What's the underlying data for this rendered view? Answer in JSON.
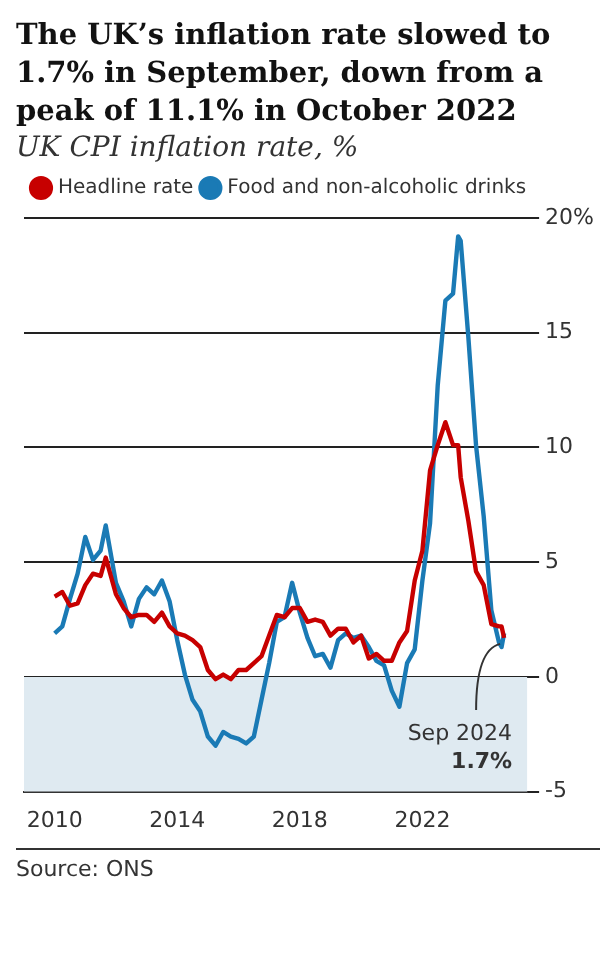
{
  "chart_data": {
    "type": "line",
    "title": "The UK’s inflation rate slowed to 1.7% in September, down from a peak of 11.1% in October 2022",
    "subtitle": "UK CPI inflation rate, %",
    "x": [
      "2010-01",
      "2010-04",
      "2010-07",
      "2010-10",
      "2011-01",
      "2011-04",
      "2011-07",
      "2011-09",
      "2012-01",
      "2012-04",
      "2012-07",
      "2012-10",
      "2013-01",
      "2013-04",
      "2013-07",
      "2013-10",
      "2014-01",
      "2014-04",
      "2014-07",
      "2014-10",
      "2015-01",
      "2015-04",
      "2015-07",
      "2015-10",
      "2016-01",
      "2016-04",
      "2016-07",
      "2016-10",
      "2017-01",
      "2017-04",
      "2017-07",
      "2017-10",
      "2018-01",
      "2018-04",
      "2018-07",
      "2018-10",
      "2019-01",
      "2019-04",
      "2019-07",
      "2019-10",
      "2020-01",
      "2020-04",
      "2020-07",
      "2020-10",
      "2021-01",
      "2021-04",
      "2021-07",
      "2021-10",
      "2022-01",
      "2022-04",
      "2022-07",
      "2022-10",
      "2023-01",
      "2023-03",
      "2023-04",
      "2023-07",
      "2023-10",
      "2024-01",
      "2024-04",
      "2024-07",
      "2024-08",
      "2024-09"
    ],
    "series": [
      {
        "name": "Headline rate",
        "color": "#c70000",
        "values": [
          3.5,
          3.7,
          3.1,
          3.2,
          4.0,
          4.5,
          4.4,
          5.2,
          3.6,
          3.0,
          2.6,
          2.7,
          2.7,
          2.4,
          2.8,
          2.2,
          1.9,
          1.8,
          1.6,
          1.3,
          0.3,
          -0.1,
          0.1,
          -0.1,
          0.3,
          0.3,
          0.6,
          0.9,
          1.8,
          2.7,
          2.6,
          3.0,
          3.0,
          2.4,
          2.5,
          2.4,
          1.8,
          2.1,
          2.1,
          1.5,
          1.8,
          0.8,
          1.0,
          0.7,
          0.7,
          1.5,
          2.0,
          4.2,
          5.5,
          9.0,
          10.1,
          11.1,
          10.1,
          10.1,
          8.7,
          6.8,
          4.6,
          4.0,
          2.3,
          2.2,
          2.2,
          1.7
        ]
      },
      {
        "name": "Food and non-alcoholic drinks",
        "color": "#1a7ab5",
        "values": [
          1.9,
          2.2,
          3.4,
          4.5,
          6.1,
          5.1,
          5.5,
          6.6,
          4.1,
          3.3,
          2.2,
          3.4,
          3.9,
          3.6,
          4.2,
          3.3,
          1.6,
          0.1,
          -1.0,
          -1.5,
          -2.6,
          -3.0,
          -2.4,
          -2.6,
          -2.7,
          -2.9,
          -2.6,
          -1.0,
          0.6,
          2.4,
          2.6,
          4.1,
          2.8,
          1.7,
          0.9,
          1.0,
          0.4,
          1.6,
          1.9,
          1.7,
          1.8,
          1.3,
          0.7,
          0.5,
          -0.6,
          -1.3,
          0.6,
          1.2,
          4.2,
          6.7,
          12.7,
          16.4,
          16.7,
          19.2,
          19.0,
          14.8,
          10.1,
          7.0,
          2.9,
          1.5,
          1.3,
          1.9
        ]
      }
    ],
    "xlim": [
      "2009-01",
      "2025-06"
    ],
    "xticks": [
      "2010",
      "2014",
      "2018",
      "2022"
    ],
    "ylim": [
      -5,
      20
    ],
    "yticks": [
      -5,
      0,
      5,
      10,
      15,
      {
        "value": 20,
        "label": "20%"
      }
    ],
    "bands": [
      {
        "axis": "y",
        "from": -5,
        "to": 0,
        "color": "#dfeaf1"
      }
    ],
    "annotations": [
      {
        "text": "Sep 2024\n1.7%",
        "x": "2024-09",
        "y": 1.7
      },
      "Source: ONS"
    ],
    "grid": "y",
    "legend": "top",
    "marker": "none",
    "line_style": "solid"
  }
}
